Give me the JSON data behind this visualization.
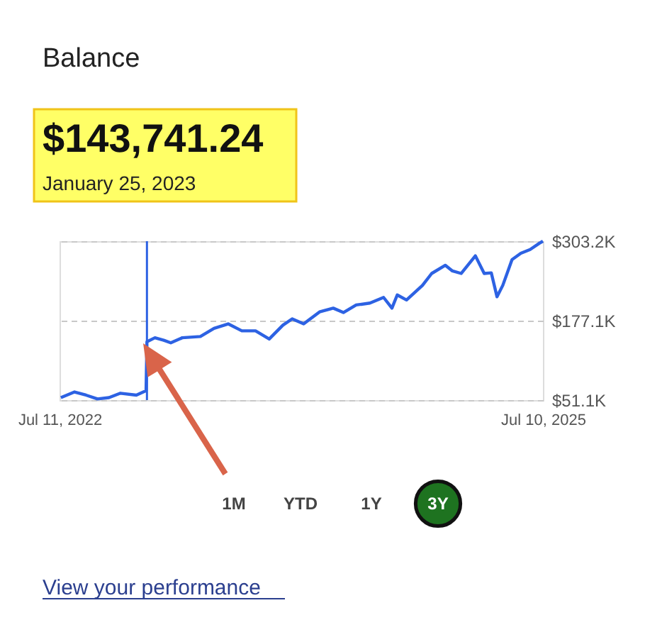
{
  "chart_data": {
    "type": "line",
    "title": "Balance",
    "annotations": [
      "$143,741.24",
      "January 25, 2023",
      "1M",
      "YTD",
      "1Y",
      "3Y",
      "View your performance"
    ],
    "x": [
      "2022-07-14",
      "2022-08-14",
      "2022-09-09",
      "2022-10-05",
      "2022-10-31",
      "2022-11-26",
      "2023-01-01",
      "2023-01-23",
      "2023-01-25",
      "2023-02-12",
      "2023-03-04",
      "2023-03-20",
      "2023-04-15",
      "2023-05-26",
      "2023-06-26",
      "2023-07-28",
      "2023-08-28",
      "2023-09-28",
      "2023-10-29",
      "2023-11-29",
      "2023-12-20",
      "2024-01-15",
      "2024-02-20",
      "2024-03-22",
      "2024-04-14",
      "2024-05-13",
      "2024-06-13",
      "2024-07-14",
      "2024-08-02",
      "2024-08-14",
      "2024-09-04",
      "2024-10-10",
      "2024-10-31",
      "2024-12-01",
      "2024-12-17",
      "2025-01-06",
      "2025-02-07",
      "2025-02-27",
      "2025-03-15",
      "2025-03-28",
      "2025-04-10",
      "2025-05-01",
      "2025-05-21",
      "2025-06-11",
      "2025-07-02",
      "2025-07-10"
    ],
    "series": [
      {
        "color": "#2d62e3",
        "values": [
          55000,
          64000,
          59000,
          53000,
          55000,
          62000,
          59000,
          66000,
          143741.24,
          150000,
          146000,
          142000,
          150000,
          152000,
          165000,
          172000,
          161000,
          161000,
          148000,
          170000,
          180000,
          172000,
          191000,
          197000,
          190000,
          202000,
          205000,
          214000,
          197000,
          218000,
          210000,
          233000,
          252000,
          265000,
          256000,
          252000,
          280000,
          252000,
          253000,
          215000,
          233000,
          274000,
          284000,
          290000,
          300000,
          303200
        ]
      }
    ],
    "xlim": [
      "2022-07-11",
      "2025-07-10"
    ],
    "xticks": [
      {
        "value": "2022-07-11",
        "label": "Jul 11, 2022"
      },
      {
        "value": "2025-07-10",
        "label": "Jul 10, 2025"
      }
    ],
    "ylim": [
      51100,
      303200
    ],
    "yticks": [
      {
        "value": 51100,
        "label": "$51.1K"
      },
      {
        "value": 177100,
        "label": "$177.1K"
      },
      {
        "value": 303200,
        "label": "$303.2K"
      }
    ],
    "ref_lines": [
      {
        "axis": "x",
        "value": "2023-01-25",
        "color": "#2d62e3"
      }
    ],
    "grid": "y",
    "marker": "none",
    "line_style": "solid"
  }
}
